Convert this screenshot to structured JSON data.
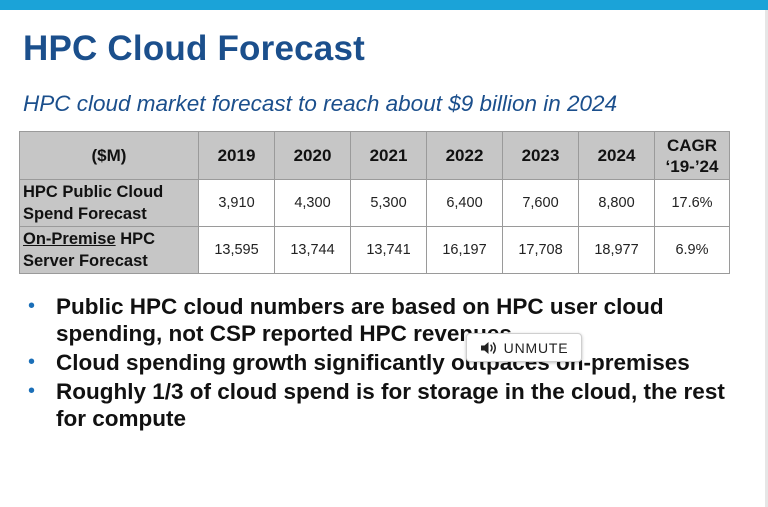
{
  "slide": {
    "title": "HPC Cloud Forecast",
    "subtitle": "HPC cloud market forecast to reach about $9 billion in 2024",
    "accent_color": "#1ba3d8",
    "title_color": "#1b4f8c"
  },
  "table": {
    "corner_header": "($M)",
    "years": [
      "2019",
      "2020",
      "2021",
      "2022",
      "2023",
      "2024"
    ],
    "cagr_header_line1": "CAGR",
    "cagr_header_line2": "‘19-’24",
    "rows": [
      {
        "label_line1": "HPC Public Cloud",
        "label_line2": "Spend Forecast",
        "values": [
          "3,910",
          "4,300",
          "5,300",
          "6,400",
          "7,600",
          "8,800"
        ],
        "cagr": "17.6%"
      },
      {
        "label_underlined": "On-Premise",
        "label_rest": " HPC",
        "label_line2": "Server Forecast",
        "values": [
          "13,595",
          "13,744",
          "13,741",
          "16,197",
          "17,708",
          "18,977"
        ],
        "cagr": "6.9%"
      }
    ]
  },
  "bullets": [
    "Public HPC cloud numbers are based on HPC user cloud spending, not CSP reported HPC revenues",
    "Cloud spending growth significantly outpaces on-premises",
    "Roughly 1/3 of cloud spend is for storage in the cloud, the rest for compute"
  ],
  "overlay": {
    "unmute_label": "UNMUTE",
    "unmute_icon": "speaker-icon"
  }
}
